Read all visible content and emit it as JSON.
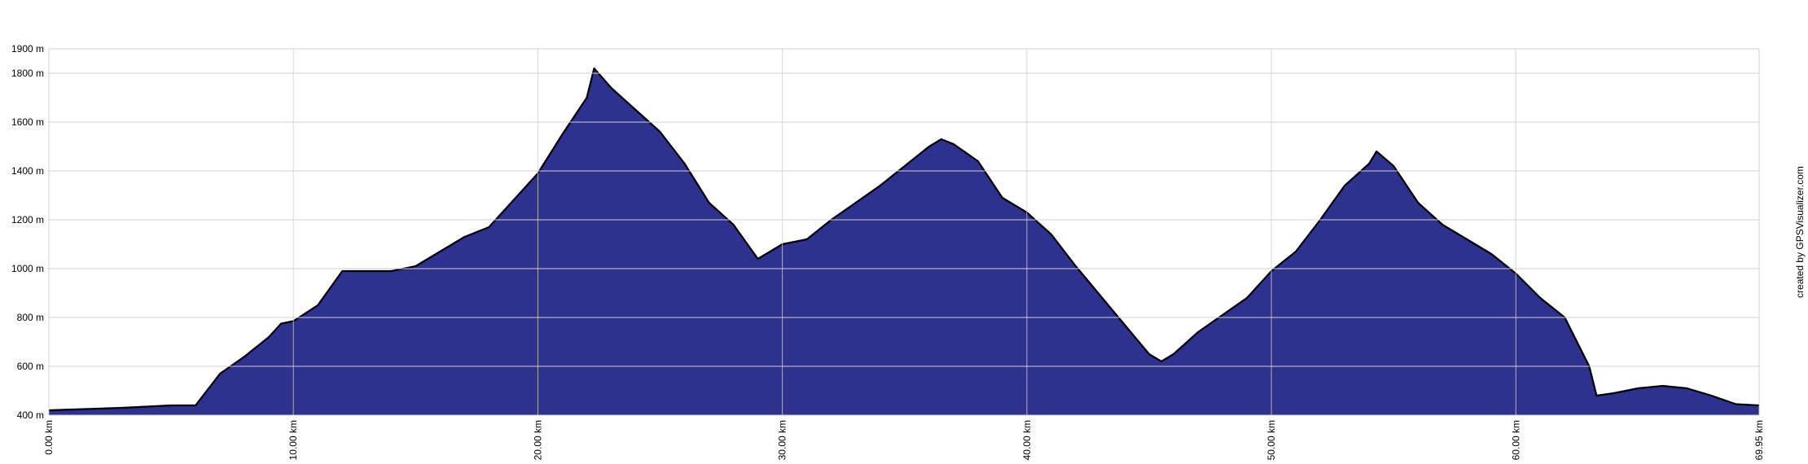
{
  "chart_data": {
    "type": "area",
    "annotation": "created by GPSVisualizer.com",
    "x": [
      0,
      3,
      5,
      6,
      7,
      8,
      9,
      9.5,
      10,
      11,
      12,
      13,
      14,
      15,
      16,
      17,
      18,
      19,
      20,
      21,
      22,
      22.3,
      23,
      24,
      25,
      26,
      27,
      28,
      29,
      30,
      31,
      32,
      33,
      34,
      35,
      36,
      36.5,
      37,
      38,
      39,
      40,
      41,
      42,
      43,
      44,
      45,
      45.5,
      46,
      47,
      48,
      49,
      50,
      51,
      52,
      53,
      54,
      54.3,
      55,
      56,
      57,
      58,
      59,
      60,
      61,
      62,
      63,
      63.3,
      64,
      65,
      66,
      67,
      68,
      69,
      69.95
    ],
    "series": [
      {
        "color": "#2e318e",
        "values": [
          420,
          430,
          440,
          440,
          570,
          640,
          720,
          775,
          785,
          850,
          990,
          990,
          990,
          1010,
          1070,
          1130,
          1170,
          1280,
          1390,
          1550,
          1700,
          1820,
          1740,
          1650,
          1560,
          1430,
          1270,
          1180,
          1040,
          1100,
          1120,
          1200,
          1270,
          1340,
          1420,
          1500,
          1530,
          1510,
          1440,
          1290,
          1230,
          1140,
          1010,
          890,
          770,
          650,
          620,
          650,
          740,
          810,
          880,
          990,
          1070,
          1200,
          1340,
          1430,
          1480,
          1420,
          1270,
          1180,
          1120,
          1060,
          980,
          880,
          800,
          600,
          480,
          490,
          510,
          520,
          510,
          480,
          445,
          440
        ]
      }
    ],
    "xlim": [
      0,
      69.95
    ],
    "xticks": [
      {
        "value": 0,
        "label": "0.00 km"
      },
      {
        "value": 10,
        "label": "10.00 km"
      },
      {
        "value": 20,
        "label": "20.00 km"
      },
      {
        "value": 30,
        "label": "30.00 km"
      },
      {
        "value": 40,
        "label": "40.00 km"
      },
      {
        "value": 50,
        "label": "50.00 km"
      },
      {
        "value": 60,
        "label": "60.00 km"
      },
      {
        "value": 69.95,
        "label": "69.95 km"
      }
    ],
    "ylim": [
      400,
      1900
    ],
    "yticks": [
      {
        "value": 400,
        "label": "400 m"
      },
      {
        "value": 600,
        "label": "600 m"
      },
      {
        "value": 800,
        "label": "800 m"
      },
      {
        "value": 1000,
        "label": "1000 m"
      },
      {
        "value": 1200,
        "label": "1200 m"
      },
      {
        "value": 1400,
        "label": "1400 m"
      },
      {
        "value": 1600,
        "label": "1600 m"
      },
      {
        "value": 1800,
        "label": "1800 m"
      },
      {
        "value": 1900,
        "label": "1900 m"
      }
    ],
    "grid": true
  }
}
